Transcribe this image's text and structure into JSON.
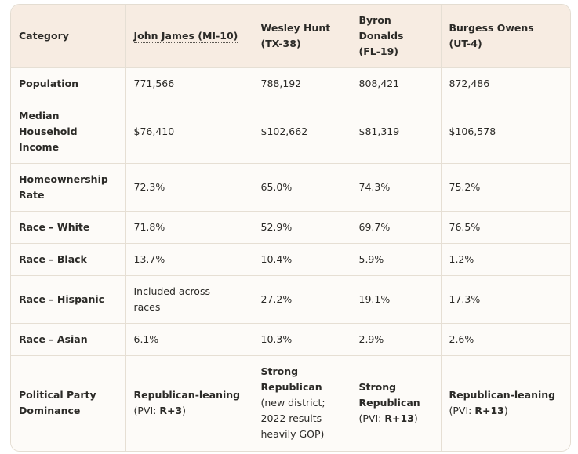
{
  "header": {
    "category": "Category",
    "cols": [
      {
        "name": "John James",
        "district": "(MI-10)"
      },
      {
        "name": "Wesley Hunt",
        "district": "(TX-38)"
      },
      {
        "name": "Byron",
        "name2": "Donalds",
        "district": "(FL-19)"
      },
      {
        "name": "Burgess Owens",
        "district": "(UT-4)"
      }
    ]
  },
  "rows": [
    {
      "label": "Population",
      "values": [
        "771,566",
        "788,192",
        "808,421",
        "872,486"
      ]
    },
    {
      "label_lines": [
        "Median",
        "Household",
        "Income"
      ],
      "values": [
        "$76,410",
        "$102,662",
        "$81,319",
        "$106,578"
      ]
    },
    {
      "label_lines": [
        "Homeownership",
        "Rate"
      ],
      "values": [
        "72.3%",
        "65.0%",
        "74.3%",
        "75.2%"
      ]
    },
    {
      "label": "Race – White",
      "values": [
        "71.8%",
        "52.9%",
        "69.7%",
        "76.5%"
      ]
    },
    {
      "label": "Race – Black",
      "values": [
        "13.7%",
        "10.4%",
        "5.9%",
        "1.2%"
      ]
    },
    {
      "label": "Race – Hispanic",
      "values_lines": [
        [
          "Included across",
          "races"
        ],
        [
          "27.2%"
        ],
        [
          "19.1%"
        ],
        [
          "17.3%"
        ]
      ]
    },
    {
      "label": "Race – Asian",
      "values": [
        "6.1%",
        "10.3%",
        "2.9%",
        "2.6%"
      ]
    }
  ],
  "party": {
    "label_lines": [
      "Political Party",
      "Dominance"
    ],
    "c1": {
      "main": "Republican-leaning",
      "pvi_prefix": "(PVI: ",
      "pvi": "R+3",
      "pvi_suffix": ")"
    },
    "c2": {
      "main_lines": [
        "Strong",
        "Republican"
      ],
      "sub_lines": [
        "(new district;",
        "2022 results",
        "heavily GOP)"
      ]
    },
    "c3": {
      "main_lines": [
        "Strong",
        "Republican"
      ],
      "pvi_prefix": "(PVI: ",
      "pvi": "R+13",
      "pvi_suffix": ")"
    },
    "c4": {
      "main": "Republican-leaning",
      "pvi_prefix": "(PVI: ",
      "pvi": "R+13",
      "pvi_suffix": ")"
    }
  }
}
